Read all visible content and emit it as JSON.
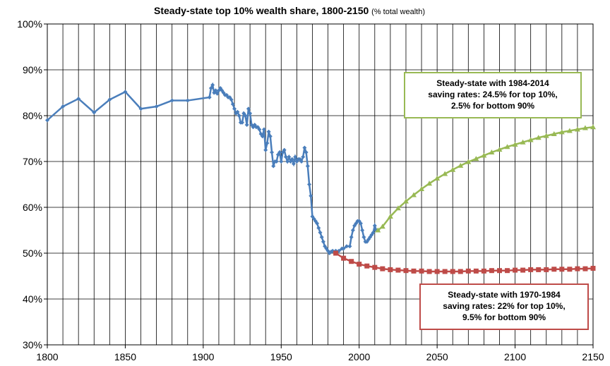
{
  "chart_data": {
    "type": "line",
    "title": "Steady-state top 10% wealth share, 1800-2150",
    "subtitle": "(% total wealth)",
    "xlim": [
      1800,
      2150
    ],
    "xticks": [
      1800,
      1850,
      1900,
      1950,
      2000,
      2050,
      2100,
      2150
    ],
    "ylim": [
      30,
      100
    ],
    "yticks": [
      {
        "value": 30,
        "label": "30%"
      },
      {
        "value": 40,
        "label": "40%"
      },
      {
        "value": 50,
        "label": "50%"
      },
      {
        "value": 60,
        "label": "60%"
      },
      {
        "value": 70,
        "label": "70%"
      },
      {
        "value": 80,
        "label": "80%"
      },
      {
        "value": 90,
        "label": "90%"
      },
      {
        "value": 100,
        "label": "100%"
      }
    ],
    "grid": true,
    "series": [
      {
        "color": "#4a7ebb",
        "marker": "diamond",
        "x": [
          1800,
          1810,
          1820,
          1830,
          1840,
          1850,
          1860,
          1870,
          1880,
          1890,
          1904,
          1905,
          1906,
          1907,
          1908,
          1909,
          1910,
          1911,
          1912,
          1913,
          1914,
          1915,
          1916,
          1917,
          1918,
          1919,
          1920,
          1921,
          1922,
          1923,
          1924,
          1925,
          1926,
          1927,
          1928,
          1929,
          1930,
          1931,
          1932,
          1933,
          1934,
          1935,
          1936,
          1937,
          1938,
          1939,
          1940,
          1941,
          1942,
          1943,
          1944,
          1945,
          1946,
          1947,
          1948,
          1949,
          1950,
          1951,
          1952,
          1953,
          1954,
          1955,
          1956,
          1957,
          1958,
          1959,
          1960,
          1961,
          1962,
          1963,
          1964,
          1965,
          1966,
          1967,
          1968,
          1969,
          1970,
          1971,
          1972,
          1973,
          1974,
          1975,
          1976,
          1977,
          1978,
          1979,
          1980,
          1981,
          1982,
          1983,
          1985,
          1987,
          1989,
          1990,
          1992,
          1994,
          1995,
          1996,
          1997,
          1998,
          1999,
          2000,
          2001,
          2002,
          2003,
          2004,
          2005,
          2006,
          2007,
          2008,
          2009,
          2010,
          2011,
          2012
        ],
        "values": [
          79,
          82,
          83.7,
          80.7,
          83.5,
          85.2,
          81.5,
          82,
          83.3,
          83.3,
          84,
          86,
          86.7,
          85,
          85.5,
          84.8,
          85.5,
          86,
          85.5,
          85,
          84.5,
          84.5,
          84,
          84,
          83.5,
          82.5,
          81.5,
          80.5,
          80.8,
          80,
          78.5,
          78.5,
          80.5,
          80,
          78,
          81.5,
          80.5,
          78,
          77.5,
          78,
          77.5,
          77.5,
          77,
          76,
          75.5,
          77,
          72.5,
          74,
          76.5,
          75.5,
          72,
          69,
          70,
          70,
          71.5,
          72,
          70,
          72,
          72.5,
          71,
          70,
          71,
          70,
          70.5,
          69.5,
          71,
          70,
          70.5,
          70.5,
          70,
          71,
          73,
          72,
          69,
          65,
          62.5,
          58,
          57.5,
          57,
          56.5,
          55.5,
          54.5,
          53.5,
          52.5,
          51.5,
          51,
          50.5,
          50,
          50.3,
          50.5,
          50.5,
          50.5,
          51,
          51,
          51.5,
          51.5,
          53.5,
          55,
          56,
          56.5,
          57,
          57,
          56.5,
          55,
          53.5,
          52.5,
          52.5,
          53,
          53.5,
          54,
          54.5,
          56,
          55,
          55
        ]
      },
      {
        "color": "#98b954",
        "marker": "triangle",
        "x": [
          2012,
          2015,
          2020,
          2025,
          2030,
          2035,
          2040,
          2045,
          2050,
          2055,
          2060,
          2065,
          2070,
          2075,
          2080,
          2085,
          2090,
          2095,
          2100,
          2105,
          2110,
          2115,
          2120,
          2125,
          2130,
          2135,
          2140,
          2145,
          2150
        ],
        "values": [
          55,
          55.8,
          58,
          59.8,
          61.3,
          62.7,
          64,
          65.2,
          66.3,
          67.3,
          68.2,
          69.1,
          69.9,
          70.6,
          71.3,
          72,
          72.6,
          73.2,
          73.7,
          74.2,
          74.7,
          75.2,
          75.6,
          76,
          76.4,
          76.7,
          77,
          77.3,
          77.5
        ]
      },
      {
        "color": "#be4b48",
        "marker": "square",
        "x": [
          1985,
          1990,
          1995,
          2000,
          2005,
          2010,
          2015,
          2020,
          2025,
          2030,
          2035,
          2040,
          2045,
          2050,
          2055,
          2060,
          2065,
          2070,
          2075,
          2080,
          2085,
          2090,
          2095,
          2100,
          2105,
          2110,
          2115,
          2120,
          2125,
          2130,
          2135,
          2140,
          2145,
          2150
        ],
        "values": [
          50,
          48.9,
          48.2,
          47.6,
          47.2,
          46.9,
          46.6,
          46.4,
          46.3,
          46.2,
          46.1,
          46.1,
          46.0,
          46.0,
          46.0,
          46.0,
          46.0,
          46.1,
          46.1,
          46.1,
          46.2,
          46.2,
          46.2,
          46.3,
          46.3,
          46.4,
          46.4,
          46.4,
          46.5,
          46.5,
          46.5,
          46.6,
          46.6,
          46.7
        ]
      }
    ],
    "annotations": [
      {
        "lines": [
          "Steady-state with 1984-2014",
          "saving rates: 24.5% for top 10%,",
          "2.5% for bottom 90%"
        ],
        "color": "#98b954"
      },
      {
        "lines": [
          "Steady-state with 1970-1984",
          "saving rates: 22% for top 10%,",
          "9.5% for bottom 90%"
        ],
        "color": "#be4b48"
      }
    ]
  }
}
